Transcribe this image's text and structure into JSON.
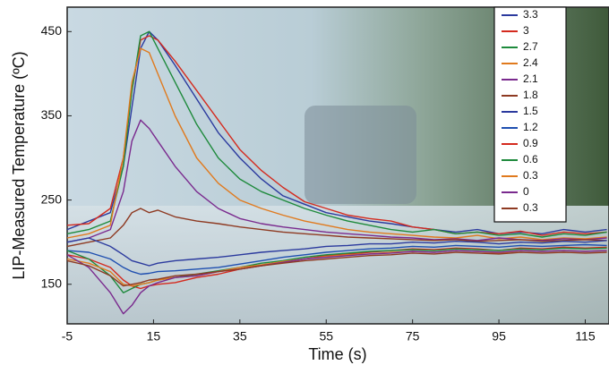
{
  "chart_data": {
    "type": "line",
    "xlabel": "Time (s)",
    "ylabel": "LIP-Measured Temperature (ºC)",
    "x": [
      -5,
      0,
      5,
      8,
      10,
      12,
      14,
      16,
      20,
      25,
      30,
      35,
      40,
      45,
      50,
      55,
      60,
      65,
      70,
      75,
      80,
      85,
      90,
      95,
      100,
      105,
      110,
      115,
      120
    ],
    "xlim": [
      -5,
      120.5
    ],
    "ylim": [
      103,
      479
    ],
    "xticks": [
      -5,
      15,
      35,
      55,
      75,
      95,
      115
    ],
    "yticks": [
      150,
      250,
      350,
      450
    ],
    "legend": "upper right",
    "series": [
      {
        "name": "3.3",
        "color": "#2b3a9e",
        "values": [
          215,
          225,
          235,
          290,
          360,
          430,
          450,
          440,
          410,
          370,
          330,
          300,
          275,
          255,
          245,
          235,
          230,
          225,
          222,
          218,
          215,
          212,
          215,
          210,
          212,
          210,
          215,
          212,
          215
        ]
      },
      {
        "name": "3",
        "color": "#d42a1e",
        "values": [
          220,
          222,
          240,
          300,
          380,
          440,
          445,
          440,
          415,
          380,
          345,
          310,
          285,
          265,
          248,
          240,
          232,
          228,
          225,
          218,
          215,
          210,
          212,
          210,
          213,
          208,
          212,
          210,
          212
        ]
      },
      {
        "name": "2.7",
        "color": "#1e8a3c",
        "values": [
          210,
          215,
          225,
          290,
          380,
          445,
          450,
          430,
          390,
          340,
          300,
          275,
          260,
          250,
          240,
          232,
          225,
          220,
          215,
          212,
          215,
          210,
          212,
          208,
          210,
          206,
          210,
          208,
          212
        ]
      },
      {
        "name": "2.4",
        "color": "#e07a1e",
        "values": [
          205,
          210,
          220,
          300,
          390,
          430,
          425,
          400,
          350,
          300,
          270,
          250,
          240,
          232,
          225,
          220,
          215,
          212,
          210,
          208,
          206,
          205,
          208,
          204,
          206,
          203,
          205,
          204,
          206
        ]
      },
      {
        "name": "2.1",
        "color": "#7a2a8e",
        "values": [
          200,
          205,
          215,
          260,
          320,
          345,
          335,
          320,
          290,
          260,
          240,
          228,
          222,
          218,
          215,
          212,
          210,
          208,
          206,
          205,
          203,
          204,
          202,
          205,
          203,
          202,
          204,
          203,
          205
        ]
      },
      {
        "name": "1.8",
        "color": "#8e3a22",
        "values": [
          195,
          200,
          205,
          220,
          235,
          240,
          235,
          238,
          230,
          225,
          222,
          218,
          215,
          212,
          210,
          208,
          206,
          205,
          204,
          203,
          202,
          203,
          201,
          202,
          203,
          201,
          202,
          203,
          202
        ]
      },
      {
        "name": "1.5",
        "color": "#2b3a9e",
        "values": [
          200,
          205,
          195,
          185,
          178,
          175,
          172,
          175,
          178,
          180,
          182,
          185,
          188,
          190,
          192,
          195,
          196,
          198,
          198,
          200,
          199,
          201,
          200,
          198,
          200,
          199,
          201,
          200,
          202
        ]
      },
      {
        "name": "1.2",
        "color": "#1f4fb0",
        "values": [
          190,
          188,
          180,
          170,
          165,
          162,
          163,
          165,
          166,
          168,
          170,
          174,
          178,
          182,
          185,
          188,
          190,
          192,
          193,
          195,
          194,
          196,
          195,
          194,
          196,
          195,
          196,
          197,
          196
        ]
      },
      {
        "name": "0.9",
        "color": "#d42a1e",
        "values": [
          185,
          180,
          170,
          155,
          148,
          145,
          148,
          150,
          152,
          158,
          162,
          168,
          172,
          176,
          180,
          184,
          186,
          188,
          190,
          192,
          191,
          193,
          192,
          190,
          193,
          192,
          194,
          193,
          194
        ]
      },
      {
        "name": "0.6",
        "color": "#1e8a3c",
        "values": [
          190,
          180,
          160,
          140,
          145,
          150,
          152,
          155,
          158,
          162,
          166,
          170,
          175,
          178,
          182,
          185,
          187,
          189,
          190,
          191,
          190,
          192,
          191,
          190,
          192,
          191,
          193,
          192,
          193
        ]
      },
      {
        "name": "0.3",
        "color": "#e07a1e",
        "values": [
          180,
          175,
          165,
          150,
          148,
          150,
          152,
          155,
          158,
          160,
          165,
          170,
          173,
          177,
          180,
          183,
          185,
          186,
          188,
          189,
          188,
          190,
          189,
          187,
          190,
          189,
          190,
          189,
          190
        ]
      },
      {
        "name": "0",
        "color": "#7a2a8e",
        "values": [
          185,
          170,
          140,
          115,
          125,
          140,
          148,
          152,
          158,
          160,
          165,
          168,
          172,
          176,
          180,
          182,
          184,
          186,
          187,
          189,
          188,
          190,
          189,
          188,
          190,
          189,
          190,
          189,
          190
        ]
      },
      {
        "name": "0.3",
        "color": "#8e3a22",
        "values": [
          178,
          172,
          160,
          148,
          150,
          152,
          155,
          156,
          160,
          162,
          165,
          168,
          172,
          175,
          178,
          180,
          182,
          184,
          185,
          187,
          186,
          188,
          187,
          186,
          188,
          187,
          188,
          187,
          188
        ]
      }
    ]
  }
}
